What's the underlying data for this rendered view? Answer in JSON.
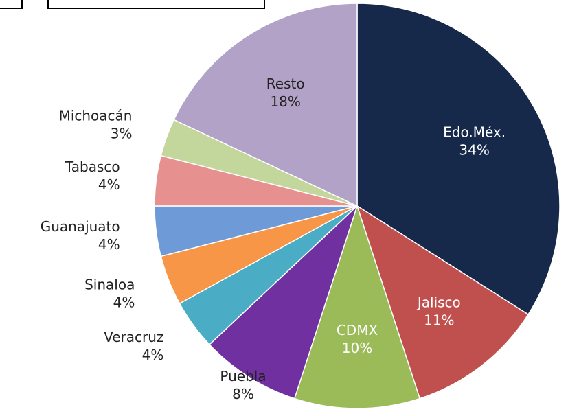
{
  "chart_data": {
    "type": "pie",
    "categories": [
      "Edo.Méx.",
      "Jalisco",
      "CDMX",
      "Puebla",
      "Veracruz",
      "Sinaloa",
      "Guanajuato",
      "Tabasco",
      "Michoacán",
      "Resto"
    ],
    "values": [
      34,
      11,
      10,
      8,
      4,
      4,
      4,
      4,
      3,
      18
    ],
    "value_labels": [
      "34%",
      "11%",
      "10%",
      "8%",
      "4%",
      "4%",
      "4%",
      "4%",
      "3%",
      "18%"
    ],
    "colors": [
      "#17294a",
      "#c0504d",
      "#9bbb59",
      "#7030a0",
      "#4bacc6",
      "#f79646",
      "#6f9ad8",
      "#e6908f",
      "#c3d69b",
      "#b3a2c7"
    ]
  }
}
